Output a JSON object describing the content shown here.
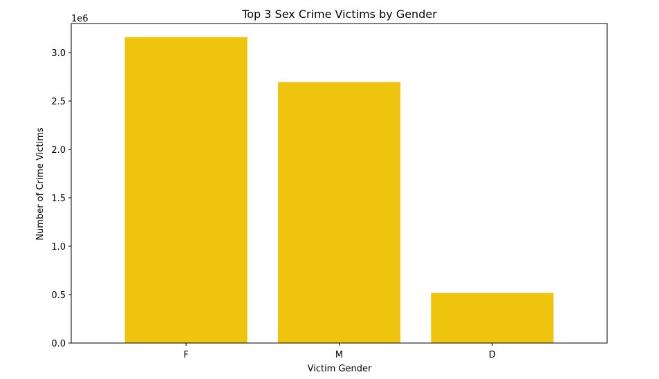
{
  "chart_data": {
    "type": "bar",
    "title": "Top 3 Sex Crime Victims by Gender",
    "xlabel": "Victim Gender",
    "ylabel": "Number of Crime Victims",
    "y_offset_label": "1e6",
    "y_scale": 1000000,
    "categories": [
      "F",
      "M",
      "D"
    ],
    "values": [
      3160000,
      2695000,
      518000
    ],
    "ylim": [
      0,
      3300000
    ],
    "yticks": [
      0,
      500000,
      1000000,
      1500000,
      2000000,
      2500000,
      3000000
    ],
    "ytick_labels": [
      "0.0",
      "0.5",
      "1.0",
      "1.5",
      "2.0",
      "2.5",
      "3.0"
    ],
    "bar_color": "#efc40f",
    "grid": false,
    "legend": "none"
  }
}
